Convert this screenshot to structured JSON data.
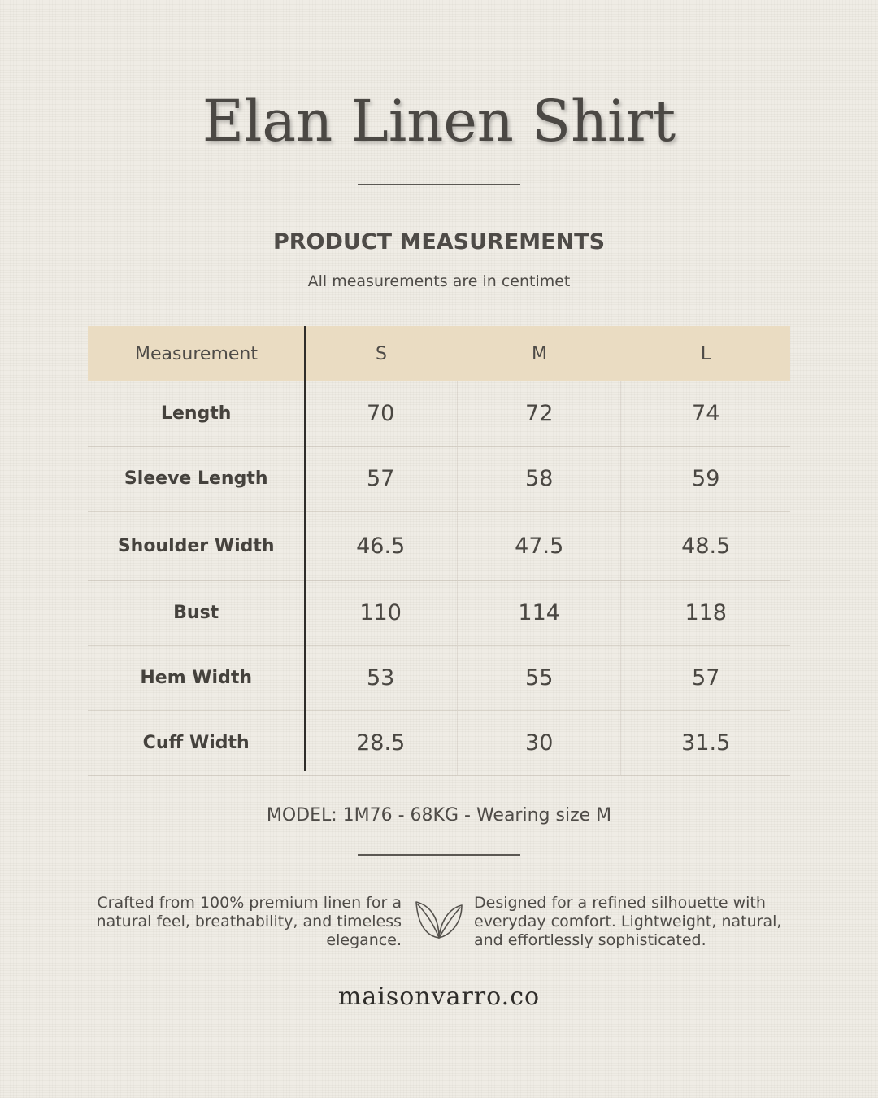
{
  "title": "Elan Linen Shirt",
  "section_title": "PRODUCT MEASUREMENTS",
  "subtitle": "All measurements are in centimet",
  "table": {
    "headers": [
      "Measurement",
      "S",
      "M",
      "L"
    ],
    "rows": [
      {
        "label": "Length",
        "values": [
          "70",
          "72",
          "74"
        ]
      },
      {
        "label": "Sleeve Length",
        "values": [
          "57",
          "58",
          "59"
        ]
      },
      {
        "label": "Shoulder Width",
        "values": [
          "46.5",
          "47.5",
          "48.5"
        ]
      },
      {
        "label": "Bust",
        "values": [
          "110",
          "114",
          "118"
        ]
      },
      {
        "label": "Hem Width",
        "values": [
          "53",
          "55",
          "57"
        ]
      },
      {
        "label": "Cuff Width",
        "values": [
          "28.5",
          "30",
          "31.5"
        ]
      }
    ]
  },
  "model_info": "MODEL: 1M76 - 68KG - Wearing size M",
  "notes": {
    "left": "Crafted from 100% premium linen for a natural feel, breathability, and timeless elegance.",
    "right": "Designed for a refined silhouette with everyday comfort. Lightweight, natural, and effortlessly sophisticated."
  },
  "icon": "leaf-icon",
  "website": "maisonvarro.co",
  "colors": {
    "background": "#efece5",
    "header_row": "#eadcc2",
    "text": "#4a4742",
    "divider": "#2f2d2a"
  }
}
